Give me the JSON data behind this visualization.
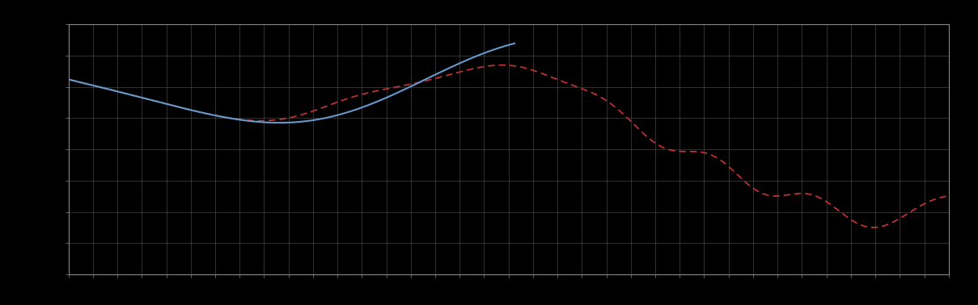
{
  "background_color": "#000000",
  "plot_bg_color": "#000000",
  "grid_color": "#555555",
  "line1_color": "#6699cc",
  "line2_color": "#cc3333",
  "figsize": [
    12.09,
    3.78
  ],
  "dpi": 100,
  "xlim": [
    0,
    365
  ],
  "ylim": [
    0,
    10
  ],
  "grid_alpha": 0.8,
  "n_x_ticks": 37,
  "n_y_ticks": 9,
  "spine_color": "#888888",
  "line1_lw": 1.5,
  "line2_lw": 1.2
}
